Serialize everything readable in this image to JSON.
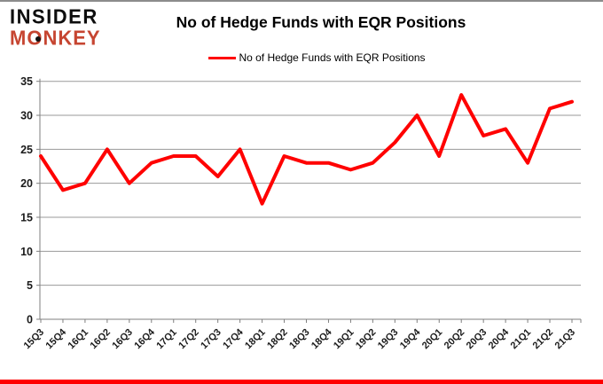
{
  "logo": {
    "line1": "INSIDER",
    "line2": "MONKEY",
    "accent_color": "#C64531"
  },
  "header": {
    "title": "No of Hedge Funds with EQR Positions"
  },
  "legend": {
    "label": "No of Hedge Funds with EQR Positions",
    "line_color": "#FF0000"
  },
  "colors": {
    "series_line": "#FF0000",
    "gridline": "#9A9A9A",
    "axis": "#7F7F7F",
    "tick_label": "#1A1A1A",
    "border_bottom": "#FF0000",
    "border_top": "#8C8C8C"
  },
  "chart_data": {
    "type": "line",
    "title": "No of Hedge Funds with EQR Positions",
    "series_name": "No of Hedge Funds with EQR Positions",
    "categories": [
      "15Q3",
      "15Q4",
      "16Q1",
      "16Q2",
      "16Q3",
      "16Q4",
      "17Q1",
      "17Q2",
      "17Q3",
      "17Q4",
      "18Q1",
      "18Q2",
      "18Q3",
      "18Q4",
      "19Q1",
      "19Q2",
      "19Q3",
      "19Q4",
      "20Q1",
      "20Q2",
      "20Q3",
      "20Q4",
      "21Q1",
      "21Q2",
      "21Q3"
    ],
    "values": [
      24,
      19,
      20,
      25,
      20,
      23,
      24,
      24,
      21,
      25,
      17,
      24,
      23,
      23,
      22,
      23,
      26,
      30,
      24,
      33,
      27,
      28,
      23,
      31,
      32
    ],
    "xlabel": "",
    "ylabel": "",
    "ylim": [
      0,
      35
    ],
    "yticks": [
      0,
      5,
      10,
      15,
      20,
      25,
      30,
      35
    ],
    "grid": true,
    "legend_position": "top",
    "line_color": "#FF0000",
    "line_width": 4
  }
}
